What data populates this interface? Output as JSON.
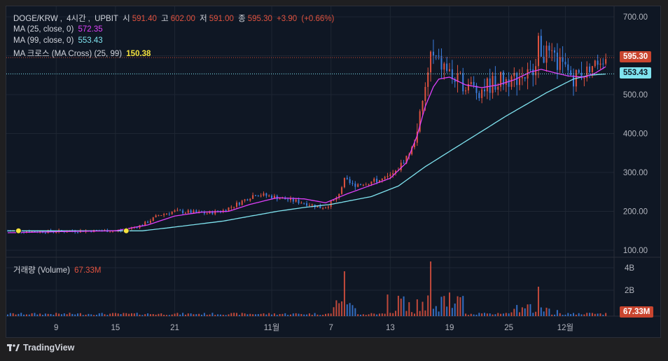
{
  "chart_data": {
    "type": "candlestick",
    "symbol": "DOGE/KRW",
    "interval": "4시간",
    "exchange": "UPBIT",
    "ohlc": {
      "open_label": "시",
      "open": "591.40",
      "high_label": "고",
      "high": "602.00",
      "low_label": "저",
      "low": "591.00",
      "close_label": "종",
      "close": "595.30",
      "change": "+3.90",
      "change_pct": "(+0.66%)"
    },
    "indicators": [
      {
        "label": "MA (25, close, 0)",
        "value": "572.35",
        "color": "#e040fb"
      },
      {
        "label": "MA (99, close, 0)",
        "value": "553.43",
        "color": "#7fe3ef"
      },
      {
        "label": "MA 크로스 (MA Cross) (25, 99)",
        "value": "150.38",
        "color": "#f5e23d"
      }
    ],
    "price_axis": {
      "ticks": [
        "700.00",
        "600.00",
        "500.00",
        "400.00",
        "300.00",
        "200.00",
        "100.00"
      ],
      "range": [
        90,
        710
      ]
    },
    "price_tags": [
      {
        "name": "last-price",
        "value": "595.30",
        "bg": "#c9452f",
        "fg": "#ffffff"
      },
      {
        "name": "ma99",
        "value": "553.43",
        "bg": "#7fe3ef",
        "fg": "#0f1724"
      }
    ],
    "volume": {
      "label": "거래량 (Volume)",
      "value": "67.33M",
      "ticks": [
        "4B",
        "2B"
      ],
      "tag": "67.33M"
    },
    "x_axis": {
      "ticks": [
        "9",
        "15",
        "21",
        "11월",
        "7",
        "13",
        "19",
        "25",
        "12월"
      ]
    },
    "series_points": {
      "price": [
        [
          0,
          150
        ],
        [
          14,
          148
        ],
        [
          30,
          150
        ],
        [
          42,
          150
        ],
        [
          50,
          165
        ],
        [
          56,
          190
        ],
        [
          62,
          200
        ],
        [
          68,
          198
        ],
        [
          74,
          195
        ],
        [
          80,
          202
        ],
        [
          86,
          222
        ],
        [
          92,
          245
        ],
        [
          98,
          238
        ],
        [
          104,
          230
        ],
        [
          110,
          222
        ],
        [
          116,
          210
        ],
        [
          118,
          212
        ],
        [
          122,
          232
        ],
        [
          125,
          280
        ],
        [
          128,
          268
        ],
        [
          134,
          275
        ],
        [
          140,
          283
        ],
        [
          144,
          300
        ],
        [
          150,
          360
        ],
        [
          154,
          470
        ],
        [
          157,
          600
        ],
        [
          160,
          580
        ],
        [
          163,
          565
        ],
        [
          166,
          535
        ],
        [
          170,
          530
        ],
        [
          174,
          510
        ],
        [
          178,
          522
        ],
        [
          182,
          535
        ],
        [
          186,
          540
        ],
        [
          190,
          548
        ],
        [
          194,
          550
        ],
        [
          197,
          625
        ],
        [
          200,
          600
        ],
        [
          203,
          585
        ],
        [
          206,
          572
        ],
        [
          210,
          545
        ],
        [
          214,
          558
        ],
        [
          218,
          580
        ],
        [
          222,
          595
        ]
      ],
      "ma25": [
        [
          0,
          145
        ],
        [
          20,
          148
        ],
        [
          40,
          150
        ],
        [
          52,
          165
        ],
        [
          62,
          188
        ],
        [
          72,
          198
        ],
        [
          82,
          200
        ],
        [
          90,
          218
        ],
        [
          100,
          235
        ],
        [
          110,
          232
        ],
        [
          118,
          222
        ],
        [
          126,
          245
        ],
        [
          134,
          265
        ],
        [
          142,
          285
        ],
        [
          148,
          325
        ],
        [
          152,
          395
        ],
        [
          155,
          470
        ],
        [
          158,
          520
        ],
        [
          160,
          540
        ],
        [
          164,
          545
        ],
        [
          170,
          525
        ],
        [
          176,
          518
        ],
        [
          182,
          525
        ],
        [
          188,
          538
        ],
        [
          194,
          558
        ],
        [
          198,
          565
        ],
        [
          202,
          558
        ],
        [
          208,
          548
        ],
        [
          214,
          545
        ],
        [
          218,
          555
        ],
        [
          222,
          572
        ]
      ],
      "ma99": [
        [
          0,
          150
        ],
        [
          50,
          150
        ],
        [
          60,
          158
        ],
        [
          80,
          175
        ],
        [
          100,
          200
        ],
        [
          110,
          210
        ],
        [
          120,
          218
        ],
        [
          135,
          238
        ],
        [
          145,
          265
        ],
        [
          155,
          315
        ],
        [
          170,
          380
        ],
        [
          185,
          445
        ],
        [
          200,
          505
        ],
        [
          210,
          540
        ],
        [
          216,
          550
        ],
        [
          222,
          553
        ]
      ]
    },
    "ma_cross_markers": [
      [
        4,
        150
      ],
      [
        44,
        150
      ]
    ]
  },
  "branding": {
    "name": "TradingView"
  }
}
